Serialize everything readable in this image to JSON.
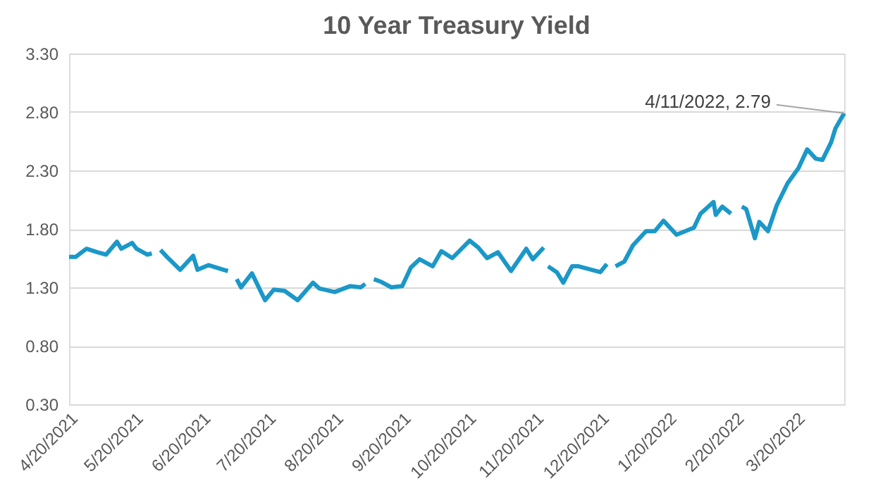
{
  "chart_data": {
    "type": "line",
    "title": "10 Year Treasury Yield",
    "x": [
      "2021-04-20",
      "2021-04-23",
      "2021-04-28",
      "2021-05-03",
      "2021-05-07",
      "2021-05-12",
      "2021-05-14",
      "2021-05-19",
      "2021-05-21",
      "2021-05-26",
      "2021-05-28",
      "2021-05-31",
      "2021-06-01",
      "2021-06-04",
      "2021-06-10",
      "2021-06-16",
      "2021-06-18",
      "2021-06-23",
      "2021-06-30",
      "2021-07-02",
      "2021-07-05",
      "2021-07-06",
      "2021-07-08",
      "2021-07-13",
      "2021-07-19",
      "2021-07-23",
      "2021-07-28",
      "2021-08-03",
      "2021-08-10",
      "2021-08-13",
      "2021-08-20",
      "2021-08-27",
      "2021-09-01",
      "2021-09-03",
      "2021-09-06",
      "2021-09-07",
      "2021-09-10",
      "2021-09-15",
      "2021-09-20",
      "2021-09-24",
      "2021-09-28",
      "2021-10-04",
      "2021-10-08",
      "2021-10-13",
      "2021-10-21",
      "2021-10-25",
      "2021-10-29",
      "2021-11-03",
      "2021-11-09",
      "2021-11-16",
      "2021-11-19",
      "2021-11-24",
      "2021-11-25",
      "2021-11-26",
      "2021-11-30",
      "2021-12-03",
      "2021-12-07",
      "2021-12-10",
      "2021-12-20",
      "2021-12-23",
      "2021-12-24",
      "2021-12-27",
      "2021-12-31",
      "2022-01-04",
      "2022-01-10",
      "2022-01-14",
      "2022-01-18",
      "2022-01-24",
      "2022-01-28",
      "2022-02-01",
      "2022-02-04",
      "2022-02-10",
      "2022-02-11",
      "2022-02-14",
      "2022-02-18",
      "2022-02-21",
      "2022-02-23",
      "2022-02-25",
      "2022-03-01",
      "2022-03-03",
      "2022-03-07",
      "2022-03-11",
      "2022-03-16",
      "2022-03-21",
      "2022-03-25",
      "2022-03-29",
      "2022-04-01",
      "2022-04-05",
      "2022-04-07",
      "2022-04-11"
    ],
    "series": [
      {
        "color": "#1b98c8",
        "values": [
          1.56,
          1.56,
          1.63,
          1.6,
          1.58,
          1.69,
          1.63,
          1.68,
          1.63,
          1.58,
          1.59,
          null,
          1.62,
          1.56,
          1.45,
          1.57,
          1.45,
          1.49,
          1.45,
          1.44,
          null,
          1.37,
          1.3,
          1.42,
          1.19,
          1.28,
          1.27,
          1.19,
          1.34,
          1.29,
          1.26,
          1.31,
          1.3,
          1.33,
          null,
          1.37,
          1.35,
          1.3,
          1.31,
          1.47,
          1.54,
          1.48,
          1.61,
          1.55,
          1.7,
          1.64,
          1.55,
          1.6,
          1.44,
          1.63,
          1.54,
          1.64,
          null,
          1.48,
          1.43,
          1.34,
          1.48,
          1.48,
          1.43,
          1.5,
          null,
          1.48,
          1.52,
          1.66,
          1.78,
          1.78,
          1.87,
          1.75,
          1.78,
          1.81,
          1.93,
          2.03,
          1.92,
          1.99,
          1.93,
          null,
          1.99,
          1.97,
          1.72,
          1.86,
          1.78,
          2.0,
          2.19,
          2.32,
          2.48,
          2.4,
          2.39,
          2.54,
          2.66,
          2.79
        ]
      }
    ],
    "xlim": [
      "2021-04-20",
      "2022-04-11"
    ],
    "xticks": [
      {
        "value": "2021-04-20",
        "label": "4/20/2021"
      },
      {
        "value": "2021-05-20",
        "label": "5/20/2021"
      },
      {
        "value": "2021-06-20",
        "label": "6/20/2021"
      },
      {
        "value": "2021-07-20",
        "label": "7/20/2021"
      },
      {
        "value": "2021-08-20",
        "label": "8/20/2021"
      },
      {
        "value": "2021-09-20",
        "label": "9/20/2021"
      },
      {
        "value": "2021-10-20",
        "label": "10/20/2021"
      },
      {
        "value": "2021-11-20",
        "label": "11/20/2021"
      },
      {
        "value": "2021-12-20",
        "label": "12/20/2021"
      },
      {
        "value": "2022-01-20",
        "label": "1/20/2022"
      },
      {
        "value": "2022-02-20",
        "label": "2/20/2022"
      },
      {
        "value": "2022-03-20",
        "label": "3/20/2022"
      }
    ],
    "ylim": [
      0.3,
      3.3
    ],
    "yticks": [
      {
        "value": 0.3,
        "label": "0.30"
      },
      {
        "value": 0.8,
        "label": "0.80"
      },
      {
        "value": 1.3,
        "label": "1.30"
      },
      {
        "value": 1.8,
        "label": "1.80"
      },
      {
        "value": 2.3,
        "label": "2.30"
      },
      {
        "value": 2.8,
        "label": "2.80"
      },
      {
        "value": 3.3,
        "label": "3.30"
      }
    ],
    "grid": "y",
    "legend": false,
    "marker": "none",
    "line_style": "solid",
    "annotations": [
      {
        "text": "4/11/2022,  2.79",
        "x": "2022-04-11",
        "y": 2.79
      }
    ]
  }
}
